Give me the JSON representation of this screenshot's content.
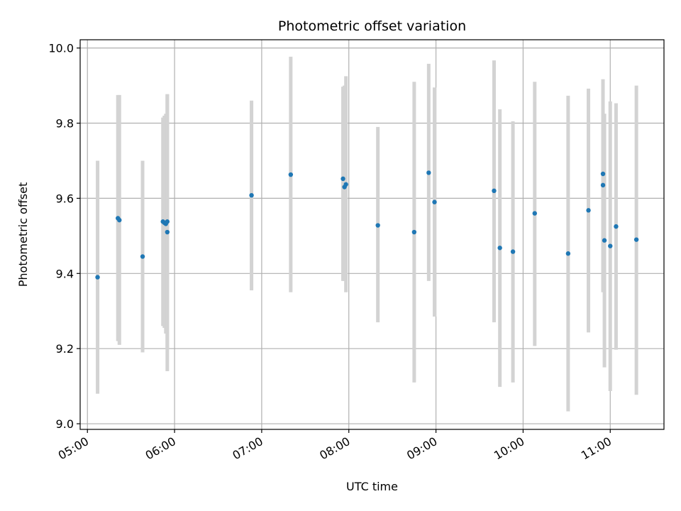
{
  "chart_data": {
    "type": "scatter",
    "title": "Photometric offset variation",
    "xlabel": "UTC time",
    "ylabel": "Photometric offset",
    "x_is_time": true,
    "xlim": [
      "04:55",
      "11:37"
    ],
    "ylim": [
      8.985,
      10.022
    ],
    "grid": true,
    "point_color": "#1f77b4",
    "errorbar_color": "#d3d3d3",
    "x_ticks": [
      "05:00",
      "06:00",
      "07:00",
      "08:00",
      "09:00",
      "10:00",
      "11:00"
    ],
    "y_ticks": [
      "9.0",
      "9.2",
      "9.4",
      "9.6",
      "9.8",
      "10.0"
    ],
    "points": [
      {
        "x": "05:07",
        "y": 9.39,
        "ylo": 9.08,
        "yhi": 9.7
      },
      {
        "x": "05:21",
        "y": 9.547,
        "ylo": 9.22,
        "yhi": 9.875
      },
      {
        "x": "05:22",
        "y": 9.542,
        "ylo": 9.21,
        "yhi": 9.875
      },
      {
        "x": "05:38",
        "y": 9.445,
        "ylo": 9.19,
        "yhi": 9.7
      },
      {
        "x": "05:52",
        "y": 9.538,
        "ylo": 9.26,
        "yhi": 9.815
      },
      {
        "x": "05:53",
        "y": 9.535,
        "ylo": 9.255,
        "yhi": 9.82
      },
      {
        "x": "05:54",
        "y": 9.532,
        "ylo": 9.24,
        "yhi": 9.825
      },
      {
        "x": "05:55",
        "y": 9.538,
        "ylo": 9.2,
        "yhi": 9.877
      },
      {
        "x": "05:55",
        "y": 9.51,
        "ylo": 9.14,
        "yhi": 9.877
      },
      {
        "x": "06:53",
        "y": 9.608,
        "ylo": 9.355,
        "yhi": 9.86
      },
      {
        "x": "07:20",
        "y": 9.663,
        "ylo": 9.35,
        "yhi": 9.977
      },
      {
        "x": "07:56",
        "y": 9.652,
        "ylo": 9.38,
        "yhi": 9.897
      },
      {
        "x": "07:57",
        "y": 9.63,
        "ylo": 9.38,
        "yhi": 9.9
      },
      {
        "x": "07:58",
        "y": 9.637,
        "ylo": 9.35,
        "yhi": 9.925
      },
      {
        "x": "08:20",
        "y": 9.528,
        "ylo": 9.27,
        "yhi": 9.79
      },
      {
        "x": "08:45",
        "y": 9.51,
        "ylo": 9.11,
        "yhi": 9.91
      },
      {
        "x": "08:55",
        "y": 9.668,
        "ylo": 9.38,
        "yhi": 9.958
      },
      {
        "x": "08:59",
        "y": 9.59,
        "ylo": 9.285,
        "yhi": 9.895
      },
      {
        "x": "09:40",
        "y": 9.62,
        "ylo": 9.27,
        "yhi": 9.967
      },
      {
        "x": "09:44",
        "y": 9.468,
        "ylo": 9.098,
        "yhi": 9.837
      },
      {
        "x": "09:53",
        "y": 9.458,
        "ylo": 9.11,
        "yhi": 9.805
      },
      {
        "x": "10:08",
        "y": 9.56,
        "ylo": 9.207,
        "yhi": 9.91
      },
      {
        "x": "10:31",
        "y": 9.453,
        "ylo": 9.033,
        "yhi": 9.873
      },
      {
        "x": "10:45",
        "y": 9.568,
        "ylo": 9.243,
        "yhi": 9.892
      },
      {
        "x": "10:55",
        "y": 9.665,
        "ylo": 9.44,
        "yhi": 9.917
      },
      {
        "x": "10:55",
        "y": 9.635,
        "ylo": 9.35,
        "yhi": 9.89
      },
      {
        "x": "10:56",
        "y": 9.488,
        "ylo": 9.15,
        "yhi": 9.825
      },
      {
        "x": "11:00",
        "y": 9.473,
        "ylo": 9.087,
        "yhi": 9.858
      },
      {
        "x": "11:04",
        "y": 9.525,
        "ylo": 9.197,
        "yhi": 9.853
      },
      {
        "x": "11:18",
        "y": 9.49,
        "ylo": 9.077,
        "yhi": 9.9
      }
    ]
  }
}
